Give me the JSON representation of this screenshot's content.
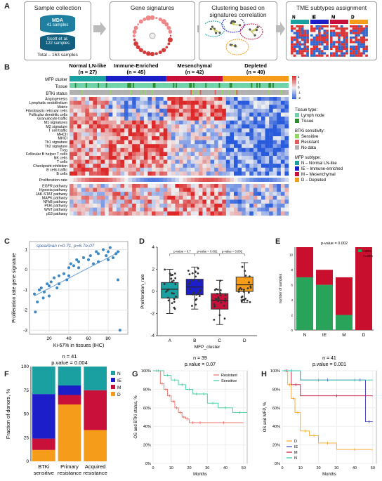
{
  "panelA": {
    "letter": "A",
    "boxes": [
      {
        "title": "Sample collection"
      },
      {
        "title": "Gene signatures"
      },
      {
        "title": "Clustering based on signatures correlation"
      },
      {
        "title": "TME subtypes assignment"
      }
    ],
    "db_top_name": "MDA",
    "db_top_count": "41 samples",
    "db_bottom_name": "Scott et al.",
    "db_bottom_count": "122 samples",
    "total": "Total – 163 samples",
    "subtype_letters": [
      "N",
      "IE",
      "M",
      "D"
    ]
  },
  "panelB": {
    "letter": "B",
    "clusters": [
      {
        "name": "Normal LN-like",
        "n": "(n = 27)",
        "color": "#1aa0a0"
      },
      {
        "name": "Immune-Enriched",
        "n": "(n = 45)",
        "color": "#1c1fc9"
      },
      {
        "name": "Mesenchymal",
        "n": "(n = 42)",
        "color": "#c8103a"
      },
      {
        "name": "Depleted",
        "n": "(n = 49)",
        "color": "#f59c1a"
      }
    ],
    "track_labels": [
      "MFP cluster",
      "Tissue",
      "BTKi status"
    ],
    "gene_rows": [
      "Angiogenesis",
      "Lymphatic endothelium",
      "Matrix",
      "Fibroblastic reticular cells",
      "Follicular dendritic cells",
      "Granulocyte traffic",
      "M1 signatures",
      "M2 signature",
      "T cell traffic",
      "MHCII",
      "MHCI",
      "Th1 signature",
      "Th2 signature",
      "Treg",
      "Follicular B helper T cells",
      "NK cells",
      "T cells",
      "Checkpoint inhibition",
      "B cells traffic",
      "B cells"
    ],
    "prolif_label": "Proliferation rate",
    "pathway_rows": [
      "EGFR pathway",
      "Hypoxia pathway",
      "JAK-STAT pathway",
      "MAPK pathway",
      "NFkB pathway",
      "PI3K pathway",
      "WNT pathway",
      "p53 pathway"
    ],
    "colorbar_ticks": [
      "2",
      "1",
      "0",
      "-1",
      "-2"
    ],
    "legend": {
      "tissue_title": "Tissue type:",
      "tissue": [
        {
          "label": "Lymph node",
          "color": "#6fd2a8"
        },
        {
          "label": "Tissue",
          "color": "#2e8b2e"
        }
      ],
      "btki_title": "BTKi sensitivity:",
      "btki": [
        {
          "label": "Sensitive",
          "color": "#8fdc5a"
        },
        {
          "label": "Resistant",
          "color": "#e85a5a"
        },
        {
          "label": "No data",
          "color": "#b0b0b0"
        }
      ],
      "mfp_title": "MFP subtype:",
      "mfp": [
        {
          "label": "N – Normal LN-like",
          "color": "#1aa0a0"
        },
        {
          "label": "IE – Immune-enriched",
          "color": "#1c1fc9"
        },
        {
          "label": "M – Mesenchymal",
          "color": "#c8103a"
        },
        {
          "label": "D – Depleted",
          "color": "#f59c1a"
        }
      ]
    }
  },
  "panelC": {
    "letter": "C",
    "annotation": "spearman r=0.71, p=6.7e-07",
    "xlabel": "Ki-67% in tissues (IHC)",
    "ylabel": "Proliferation rate gene signature",
    "xticks": [
      "20",
      "40",
      "60",
      "80"
    ],
    "yticks": [
      "1",
      "0",
      "-1",
      "-2",
      "-3"
    ]
  },
  "panelD": {
    "letter": "D",
    "xlabel": "MFP_cluster",
    "ylabel": "Proliferation_rate",
    "categories": [
      "A",
      "B",
      "C",
      "D"
    ],
    "yticks": [
      "4",
      "2",
      "0",
      "-2",
      "-4"
    ],
    "pvalues": [
      "p-value = 0.7",
      "p-value = 0.002",
      "p-value = 0.002"
    ],
    "colors": [
      "#1aa0a0",
      "#1c1fc9",
      "#c8103a",
      "#f59c1a"
    ]
  },
  "panelE": {
    "letter": "E",
    "title": "p-value = 0.002",
    "ylabel": "number of samples",
    "categories": [
      "N",
      "IE",
      "M",
      "D"
    ],
    "legend": [
      "<40%",
      ">=40%"
    ],
    "yticks": [
      "10",
      "8",
      "6",
      "4",
      "2",
      "0"
    ]
  },
  "panelF": {
    "letter": "F",
    "title_n": "n = 41",
    "title_p": "p.value = 0.004",
    "ylabel": "Fraction of donors, %",
    "categories": [
      "BTKi\nsensitive",
      "Primary\nresistance",
      "Acquired\nresistance"
    ],
    "cat_lines": [
      [
        "BTKi",
        "sensitive"
      ],
      [
        "Primary",
        "resistance"
      ],
      [
        "Acquired",
        "resistance"
      ]
    ],
    "yticks": [
      "100",
      "75",
      "50",
      "25",
      "0"
    ],
    "legend": [
      {
        "label": "N",
        "color": "#1aa0a0"
      },
      {
        "label": "IE",
        "color": "#1c1fc9"
      },
      {
        "label": "M",
        "color": "#c8103a"
      },
      {
        "label": "D",
        "color": "#f59c1a"
      }
    ]
  },
  "panelG": {
    "letter": "G",
    "title_n": "n = 39",
    "title_p": "p.value = 0.07",
    "ylabel": "OS and BTKi status, %",
    "xlabel": "Months",
    "xticks": [
      "0",
      "10",
      "20",
      "30",
      "40",
      "50"
    ],
    "yticks": [
      "100%",
      "80%",
      "60%",
      "40%",
      "20%",
      "0%"
    ],
    "legend": [
      {
        "label": "Resistant",
        "color": "#ef6f63"
      },
      {
        "label": "Sensitive",
        "color": "#3fcca0"
      }
    ]
  },
  "panelH": {
    "letter": "H",
    "title_n": "n = 41",
    "title_p": "p.value = 0.001",
    "ylabel": "OS and MFP, %",
    "xlabel": "Months",
    "xticks": [
      "0",
      "10",
      "20",
      "30",
      "40",
      "50"
    ],
    "yticks": [
      "100%",
      "80%",
      "60%",
      "40%",
      "20%",
      "0%"
    ],
    "legend": [
      {
        "label": "D",
        "color": "#f5a623"
      },
      {
        "label": "IE",
        "color": "#3f3fbf"
      },
      {
        "label": "M",
        "color": "#c8103a"
      },
      {
        "label": "N",
        "color": "#2ec4b6"
      }
    ]
  },
  "chart_data": [
    {
      "type": "scatter",
      "panel": "C",
      "annotation": "spearman r=0.71, p=6.7e-07",
      "xlabel": "Ki-67% in tissues (IHC)",
      "ylabel": "Proliferation rate gene signature",
      "xlim": [
        0,
        100
      ],
      "ylim": [
        -3.2,
        1.4
      ],
      "x": [
        5,
        6,
        8,
        10,
        12,
        14,
        15,
        18,
        20,
        20,
        22,
        25,
        28,
        30,
        30,
        35,
        38,
        40,
        40,
        42,
        45,
        48,
        50,
        50,
        55,
        60,
        62,
        65,
        68,
        70,
        70,
        75,
        78,
        80,
        80,
        82,
        85,
        88,
        90,
        90,
        92
      ],
      "y": [
        -1.2,
        -2.1,
        -1.6,
        -1.0,
        -0.9,
        -1.4,
        -1.1,
        -0.7,
        -0.8,
        -1.3,
        -0.6,
        -0.4,
        -0.9,
        -0.3,
        -0.7,
        -0.2,
        -0.5,
        0.1,
        -0.3,
        0.3,
        0.2,
        0.5,
        0.4,
        0.1,
        0.6,
        0.5,
        0.7,
        0.3,
        0.9,
        0.4,
        0.8,
        1.0,
        0.7,
        0.5,
        0.9,
        1.1,
        0.6,
        0.8,
        0.9,
        -0.5,
        -3.0
      ]
    },
    {
      "type": "box",
      "panel": "D",
      "categories": [
        "A",
        "B",
        "C",
        "D"
      ],
      "ylim": [
        -4,
        4
      ],
      "median": [
        0.2,
        0.4,
        -0.8,
        0.6
      ],
      "q1": [
        -0.6,
        -0.3,
        -1.6,
        0.0
      ],
      "q3": [
        0.8,
        1.1,
        -0.2,
        1.3
      ],
      "whisker_low": [
        -2.0,
        -1.6,
        -3.0,
        -1.0
      ],
      "whisker_high": [
        2.0,
        2.2,
        1.0,
        2.6
      ]
    },
    {
      "type": "bar",
      "panel": "E",
      "categories": [
        "N",
        "IE",
        "M",
        "D"
      ],
      "series": [
        {
          "name": "<40%",
          "values": [
            7,
            6,
            2,
            0
          ]
        },
        {
          "name": ">=40%",
          "values": [
            4,
            2,
            5,
            11
          ]
        }
      ],
      "ylim": [
        0,
        11
      ]
    },
    {
      "type": "bar",
      "panel": "F",
      "categories": [
        "BTKi sensitive",
        "Primary resistance",
        "Acquired resistance"
      ],
      "series": [
        {
          "name": "D",
          "values": [
            12,
            60,
            33
          ]
        },
        {
          "name": "M",
          "values": [
            12,
            10,
            42
          ]
        },
        {
          "name": "IE",
          "values": [
            47,
            10,
            0
          ]
        },
        {
          "name": "N",
          "values": [
            29,
            20,
            25
          ]
        }
      ],
      "ylim": [
        0,
        100
      ]
    },
    {
      "type": "line",
      "panel": "G",
      "xlim": [
        0,
        52
      ],
      "ylim": [
        0,
        100
      ],
      "series": [
        {
          "name": "Resistant",
          "x": [
            0,
            4,
            6,
            8,
            10,
            12,
            14,
            16,
            18,
            20,
            24,
            28,
            50
          ],
          "y": [
            100,
            86,
            80,
            73,
            67,
            60,
            55,
            50,
            48,
            44,
            44,
            44,
            44
          ]
        },
        {
          "name": "Sensitive",
          "x": [
            0,
            6,
            10,
            14,
            18,
            22,
            26,
            30,
            36,
            44,
            52
          ],
          "y": [
            100,
            95,
            90,
            85,
            80,
            75,
            75,
            65,
            60,
            55,
            55
          ]
        }
      ]
    },
    {
      "type": "line",
      "panel": "H",
      "xlim": [
        0,
        52
      ],
      "ylim": [
        0,
        100
      ],
      "series": [
        {
          "name": "D",
          "x": [
            0,
            3,
            5,
            7,
            10,
            15,
            20,
            30,
            50
          ],
          "y": [
            100,
            85,
            70,
            55,
            35,
            30,
            22,
            15,
            15
          ]
        },
        {
          "name": "IE",
          "x": [
            0,
            10,
            40,
            46,
            50
          ],
          "y": [
            100,
            90,
            90,
            45,
            45
          ]
        },
        {
          "name": "M",
          "x": [
            0,
            5,
            10,
            50
          ],
          "y": [
            100,
            85,
            73,
            73
          ]
        },
        {
          "name": "N",
          "x": [
            0,
            10,
            30,
            50
          ],
          "y": [
            100,
            90,
            90,
            90
          ]
        }
      ]
    }
  ]
}
